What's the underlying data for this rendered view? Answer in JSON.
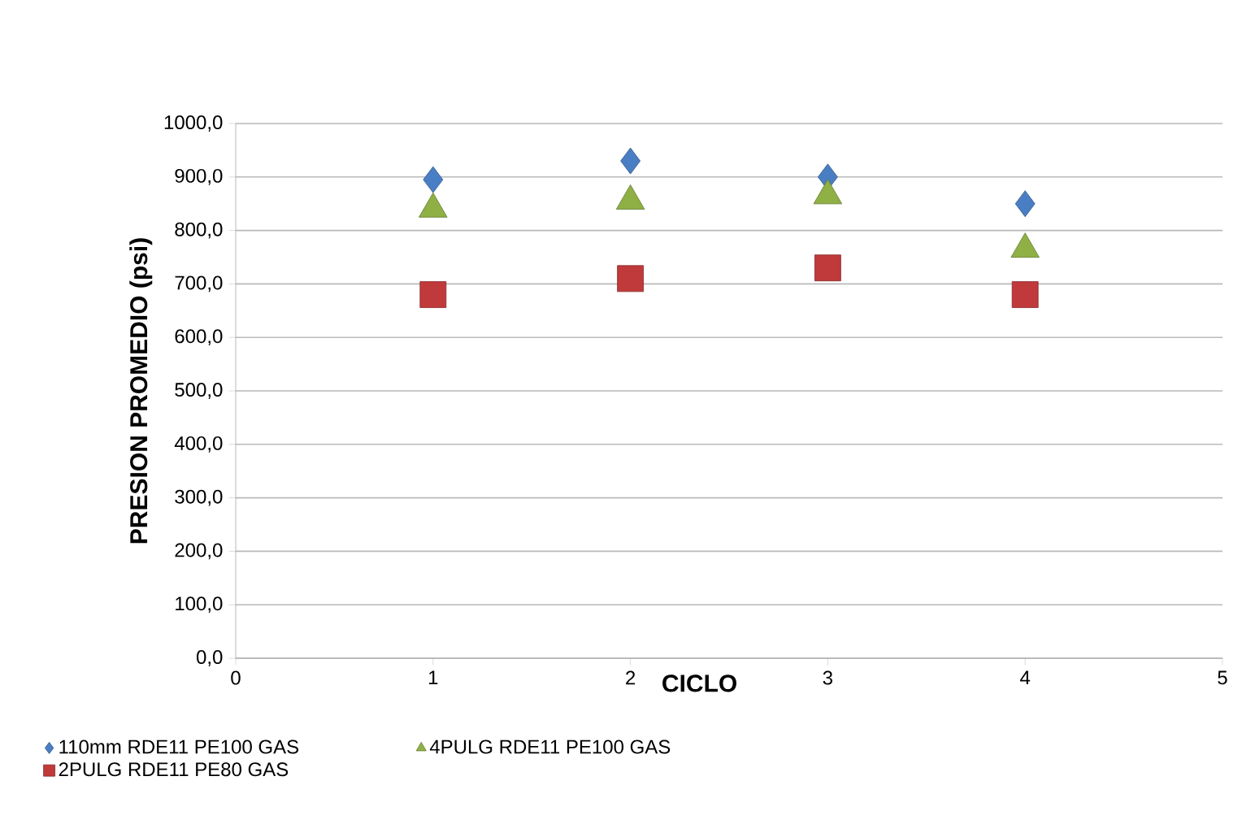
{
  "chart_data": {
    "type": "scatter",
    "xlabel": "CICLO",
    "ylabel": "PRESION  PROMEDIO  (psi)",
    "xlim": [
      0,
      5
    ],
    "xticks": [
      0,
      1,
      2,
      3,
      4,
      5
    ],
    "ylim": [
      0,
      1000
    ],
    "yticks": [
      {
        "value": 0,
        "label": "0,0"
      },
      {
        "value": 100,
        "label": "100,0"
      },
      {
        "value": 200,
        "label": "200,0"
      },
      {
        "value": 300,
        "label": "300,0"
      },
      {
        "value": 400,
        "label": "400,0"
      },
      {
        "value": 500,
        "label": "500,0"
      },
      {
        "value": 600,
        "label": "600,0"
      },
      {
        "value": 700,
        "label": "700,0"
      },
      {
        "value": 800,
        "label": "800,0"
      },
      {
        "value": 900,
        "label": "900,0"
      },
      {
        "value": 1000,
        "label": "1000,0"
      }
    ],
    "grid": "y",
    "legend": "bottom",
    "series": [
      {
        "name": "110mm RDE11 PE100  GAS",
        "color": "#4a7ec4",
        "marker": "diamond",
        "x": [
          1,
          2,
          3,
          4
        ],
        "values": [
          895,
          930,
          900,
          850
        ]
      },
      {
        "name": "2PULG RDE11 PE80 GAS",
        "color": "#c0393b",
        "marker": "square",
        "x": [
          1,
          2,
          3,
          4
        ],
        "values": [
          680,
          710,
          730,
          680
        ]
      },
      {
        "name": "4PULG RDE11 PE100 GAS",
        "color": "#8fb045",
        "marker": "triangle",
        "x": [
          1,
          2,
          3,
          4
        ],
        "values": [
          840,
          855,
          865,
          765
        ]
      }
    ]
  }
}
